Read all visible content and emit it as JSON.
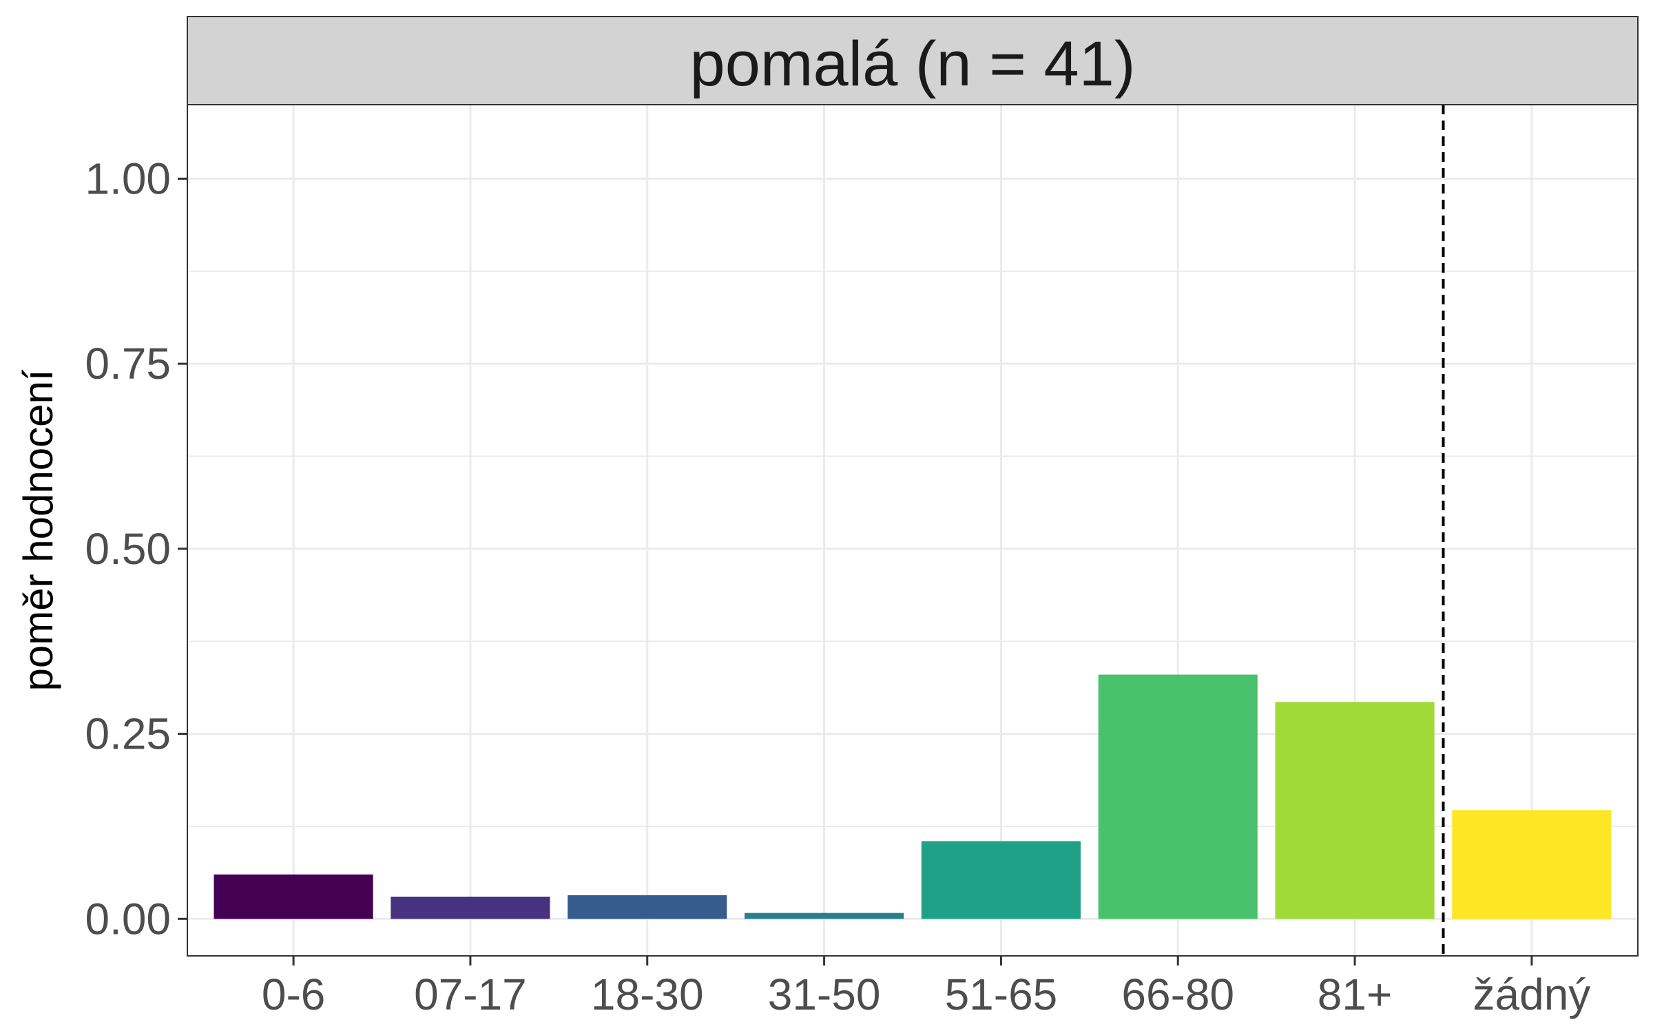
{
  "chart_data": {
    "type": "bar",
    "panel_title": "pomalá (n = 41)",
    "xlabel": "",
    "ylabel": "poměr hodnocení",
    "categories": [
      "0-6",
      "07-17",
      "18-30",
      "31-50",
      "51-65",
      "66-80",
      "81+",
      "žádný"
    ],
    "values": [
      0.06,
      0.03,
      0.032,
      0.008,
      0.105,
      0.33,
      0.293,
      0.147
    ],
    "colors": [
      "#440154",
      "#46327e",
      "#365c8d",
      "#277f8e",
      "#1fa187",
      "#4ac16d",
      "#a0da39",
      "#fde725"
    ],
    "ylim": [
      -0.05,
      1.1
    ],
    "yticks": [
      "0.00",
      "0.25",
      "0.50",
      "0.75",
      "1.00"
    ],
    "ytick_values": [
      0,
      0.25,
      0.5,
      0.75,
      1.0
    ],
    "grid": true,
    "reference_line": {
      "between_categories": [
        "81+",
        "žádný"
      ],
      "style": "dashed"
    }
  }
}
